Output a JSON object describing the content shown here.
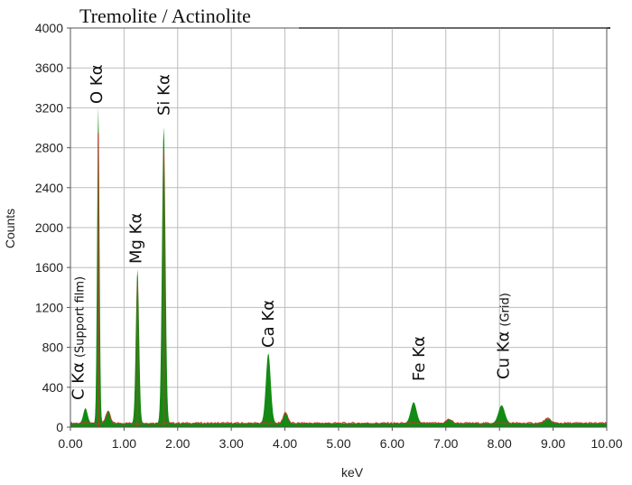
{
  "chart_data": {
    "type": "line",
    "title": "Tremolite / Actinolite",
    "xlabel": "keV",
    "ylabel": "Counts",
    "xlim": [
      0,
      10
    ],
    "ylim": [
      0,
      4000
    ],
    "x_ticks": [
      "0.00",
      "1.00",
      "2.00",
      "3.00",
      "4.00",
      "5.00",
      "6.00",
      "7.00",
      "8.00",
      "9.00",
      "10.00"
    ],
    "y_ticks": [
      "0",
      "400",
      "800",
      "1200",
      "1600",
      "2000",
      "2400",
      "2800",
      "3200",
      "3600",
      "4000"
    ],
    "grid": true,
    "colors": {
      "spectrum_fill": "#138a13",
      "background_line": "#c0392b",
      "grid": "#bdbdbd"
    },
    "peaks": [
      {
        "label": "C Kα",
        "note": "(Support film)",
        "energy": 0.28,
        "counts": 150,
        "width": 0.04
      },
      {
        "label": "O Kα",
        "note": "",
        "energy": 0.52,
        "counts": 3170,
        "width": 0.022
      },
      {
        "label": "Mg Kα",
        "note": "",
        "energy": 1.25,
        "counts": 1540,
        "width": 0.03
      },
      {
        "label": "Si Kα",
        "note": "",
        "energy": 1.74,
        "counts": 2970,
        "width": 0.032
      },
      {
        "label": "Ca Kα",
        "note": "",
        "energy": 3.69,
        "counts": 700,
        "width": 0.045
      },
      {
        "label": "Fe Kα",
        "note": "",
        "energy": 6.4,
        "counts": 210,
        "width": 0.055
      },
      {
        "label": "Cu Kα",
        "note": "(Grid)",
        "energy": 8.04,
        "counts": 180,
        "width": 0.06
      }
    ],
    "minor_peaks": [
      {
        "energy": 0.7,
        "counts": 120,
        "width": 0.04
      },
      {
        "energy": 4.01,
        "counts": 110,
        "width": 0.04
      },
      {
        "energy": 7.06,
        "counts": 40,
        "width": 0.05
      },
      {
        "energy": 8.9,
        "counts": 45,
        "width": 0.06
      }
    ],
    "background_counts": 40
  }
}
